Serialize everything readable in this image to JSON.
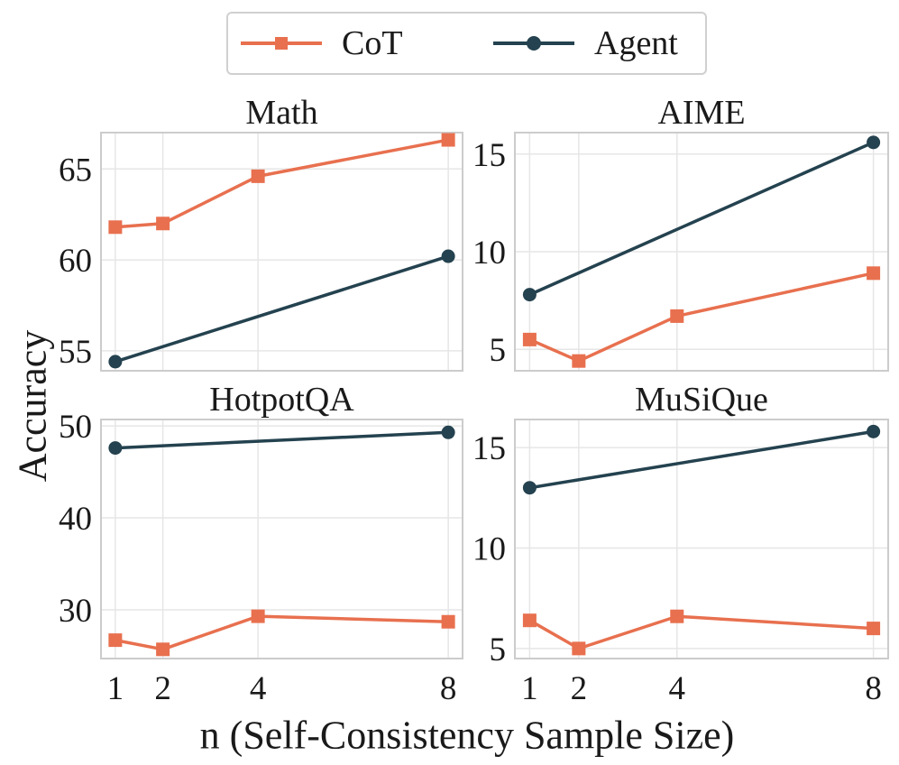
{
  "colors": {
    "cot": "#e8704f",
    "agent": "#24424f",
    "grid": "#e6e6e6",
    "frame": "#cccccc"
  },
  "legend": {
    "cot_label": "CoT",
    "agent_label": "Agent"
  },
  "figure": {
    "ylabel": "Accuracy",
    "xlabel": "n (Self-Consistency Sample Size)"
  },
  "chart_data": [
    {
      "type": "line",
      "title": "Math",
      "x": [
        1,
        2,
        4,
        8
      ],
      "xticks": [],
      "yticks": [
        55,
        60,
        65
      ],
      "ylim": [
        53.9,
        67.0
      ],
      "series": [
        {
          "name": "CoT",
          "marker": "square",
          "x": [
            1,
            2,
            4,
            8
          ],
          "values": [
            61.8,
            62.0,
            64.6,
            66.6
          ]
        },
        {
          "name": "Agent",
          "marker": "circle",
          "x": [
            1,
            8
          ],
          "values": [
            54.4,
            60.2
          ]
        }
      ]
    },
    {
      "type": "line",
      "title": "AIME",
      "x": [
        1,
        2,
        4,
        8
      ],
      "xticks": [],
      "yticks": [
        5,
        10,
        15
      ],
      "ylim": [
        3.9,
        16.1
      ],
      "series": [
        {
          "name": "CoT",
          "marker": "square",
          "x": [
            1,
            2,
            4,
            8
          ],
          "values": [
            5.5,
            4.4,
            6.7,
            8.9
          ]
        },
        {
          "name": "Agent",
          "marker": "circle",
          "x": [
            1,
            8
          ],
          "values": [
            7.8,
            15.6
          ]
        }
      ]
    },
    {
      "type": "line",
      "title": "HotpotQA",
      "x": [
        1,
        2,
        4,
        8
      ],
      "xticks": [
        1,
        2,
        4,
        8
      ],
      "yticks": [
        30,
        40,
        50
      ],
      "ylim": [
        24.7,
        50.7
      ],
      "series": [
        {
          "name": "CoT",
          "marker": "square",
          "x": [
            1,
            2,
            4,
            8
          ],
          "values": [
            26.7,
            25.7,
            29.3,
            28.7
          ]
        },
        {
          "name": "Agent",
          "marker": "circle",
          "x": [
            1,
            8
          ],
          "values": [
            47.6,
            49.3
          ]
        }
      ]
    },
    {
      "type": "line",
      "title": "MuSiQue",
      "x": [
        1,
        2,
        4,
        8
      ],
      "xticks": [
        1,
        2,
        4,
        8
      ],
      "yticks": [
        5,
        10,
        15
      ],
      "ylim": [
        4.5,
        16.4
      ],
      "series": [
        {
          "name": "CoT",
          "marker": "square",
          "x": [
            1,
            2,
            4,
            8
          ],
          "values": [
            6.4,
            5.0,
            6.6,
            6.0
          ]
        },
        {
          "name": "Agent",
          "marker": "circle",
          "x": [
            1,
            8
          ],
          "values": [
            13.0,
            15.8
          ]
        }
      ]
    }
  ]
}
